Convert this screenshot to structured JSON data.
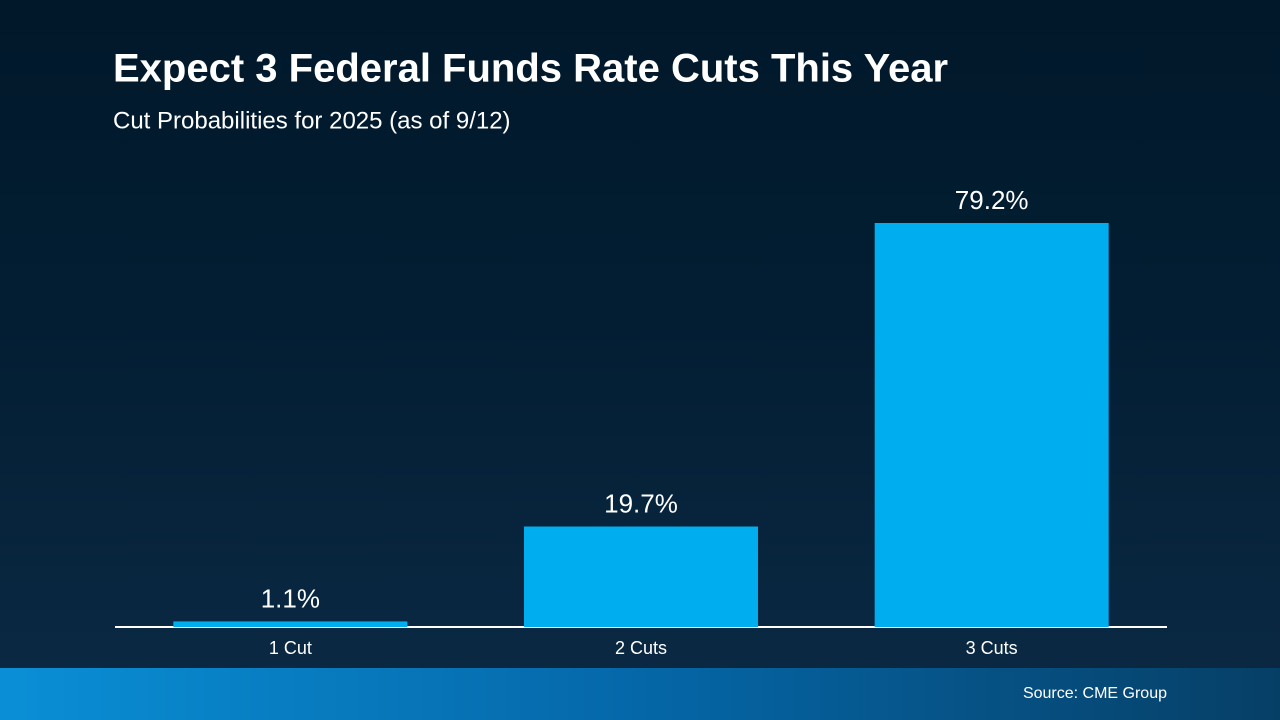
{
  "chart_data": {
    "type": "bar",
    "title": "Expect 3 Federal Funds Rate Cuts This Year",
    "subtitle": "Cut Probabilities for 2025 (as of 9/12)",
    "categories": [
      "1 Cut",
      "2 Cuts",
      "3 Cuts"
    ],
    "values": [
      1.1,
      19.7,
      79.2
    ],
    "value_labels": [
      "1.1%",
      "19.7%",
      "79.2%"
    ],
    "color": "#00adef",
    "source": "Source: CME Group"
  }
}
